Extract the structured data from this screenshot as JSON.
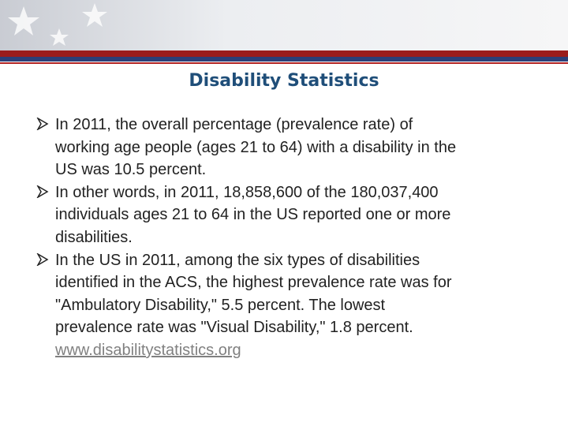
{
  "title": "Disability Statistics",
  "bullets": [
    {
      "lines": [
        "In 2011, the overall percentage (prevalence rate) of",
        "working age people (ages 21 to 64) with a disability in the",
        "US was 10.5 percent."
      ]
    },
    {
      "lines": [
        "In other words, in 2011, 18,858,600 of the 180,037,400",
        "individuals ages 21 to 64 in the US reported one or more",
        "disabilities."
      ]
    },
    {
      "lines": [
        "In the US in 2011, among the six types of disabilities",
        "identified in the ACS, the highest prevalence rate was for",
        "\"Ambulatory Disability,\" 5.5 percent. The lowest",
        "prevalence rate was \"Visual Disability,\" 1.8 percent."
      ],
      "link": "www.disabilitystatistics.org"
    }
  ]
}
